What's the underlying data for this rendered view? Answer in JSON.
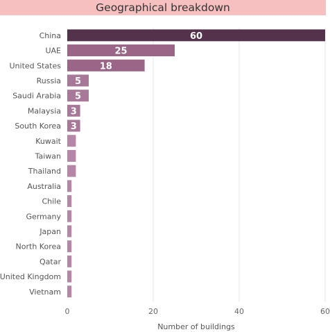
{
  "chart_data": {
    "type": "bar",
    "orientation": "horizontal",
    "title": "Geographical breakdown",
    "xlabel": "Number of buildings",
    "ylabel": "",
    "categories": [
      "China",
      "UAE",
      "United States",
      "Russia",
      "Saudi Arabia",
      "Malaysia",
      "South Korea",
      "Kuwait",
      "Taiwan",
      "Thailand",
      "Australia",
      "Chile",
      "Germany",
      "Japan",
      "North Korea",
      "Qatar",
      "United Kingdom",
      "Vietnam"
    ],
    "values": [
      60,
      25,
      18,
      5,
      5,
      3,
      3,
      2,
      2,
      2,
      1,
      1,
      1,
      1,
      1,
      1,
      1,
      1
    ],
    "data_labels": [
      "60",
      "25",
      "18",
      "5",
      "5",
      "3",
      "3",
      "",
      "",
      "",
      "",
      "",
      "",
      "",
      "",
      "",
      "",
      ""
    ],
    "xlim": [
      0,
      60
    ],
    "x_ticks": [
      0,
      20,
      40,
      60
    ],
    "x_tick_labels": [
      "0",
      "20",
      "40",
      "60"
    ],
    "grid": true,
    "colors": {
      "bar_max": "#55324b",
      "bar_high": "#9a6587",
      "bar_mid": "#a87899",
      "bar_low": "#b487a7",
      "title_background": "#f7c0c0"
    }
  }
}
